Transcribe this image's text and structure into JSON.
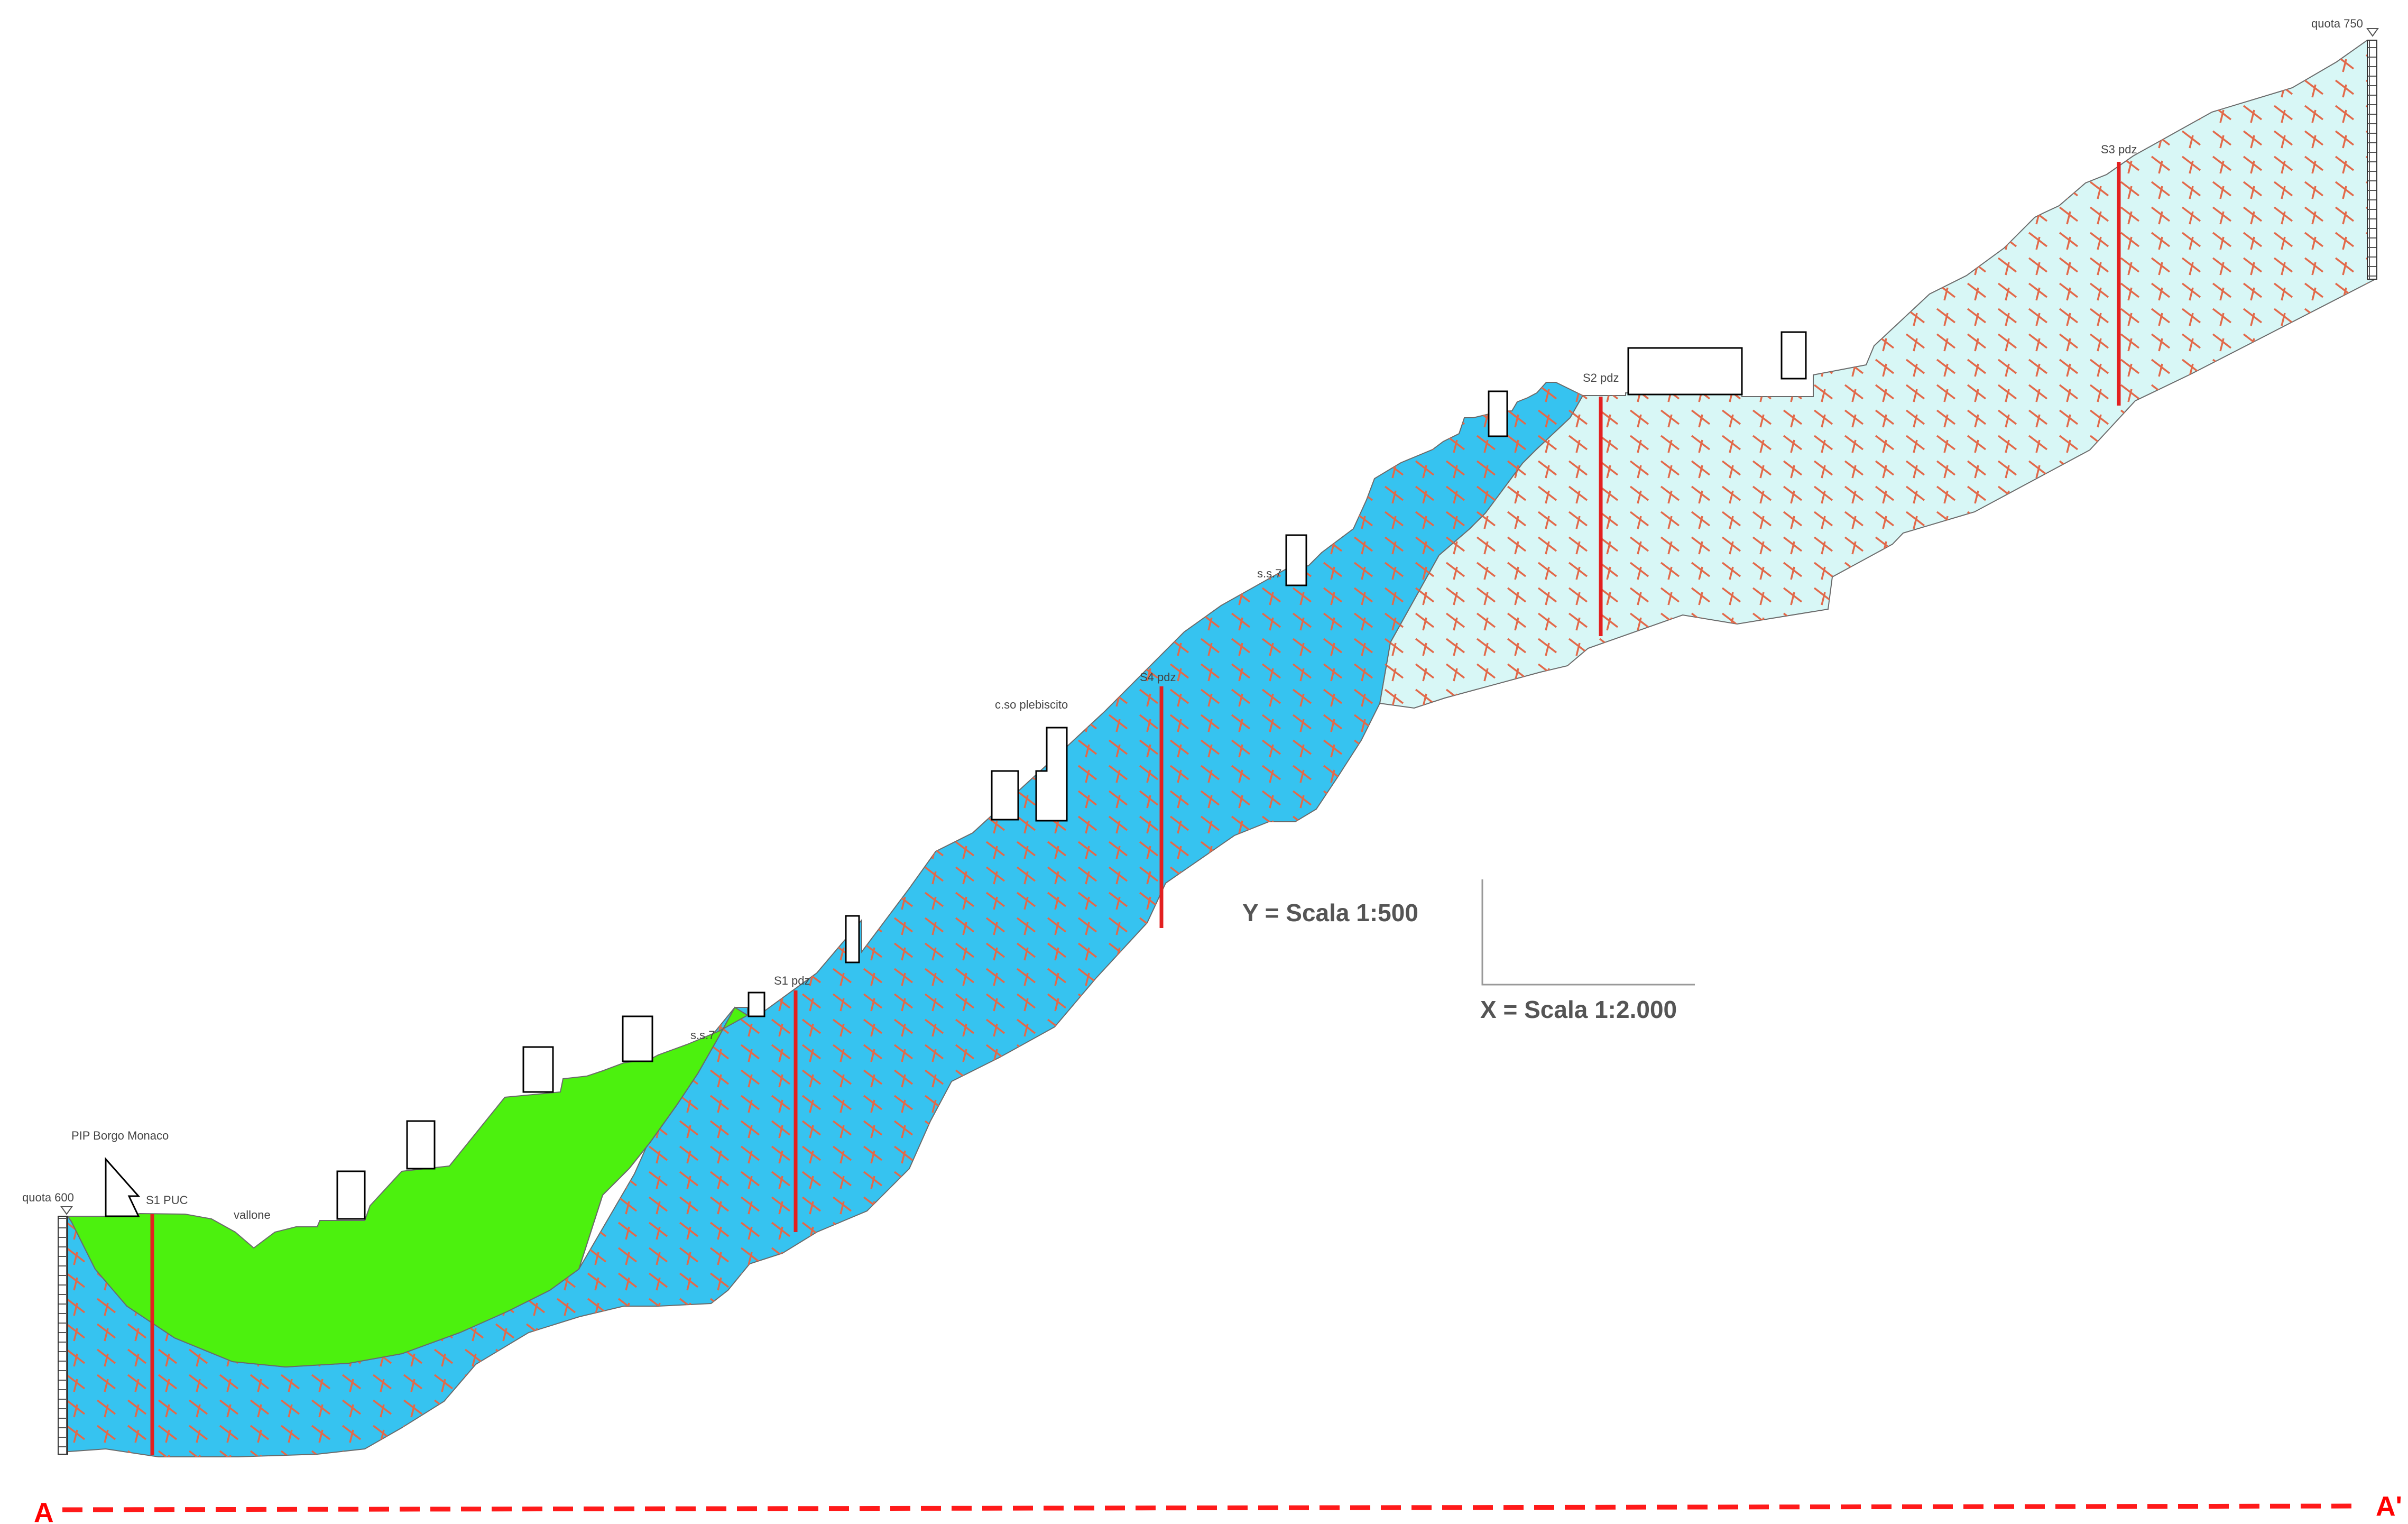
{
  "diagram": {
    "section_start": "A",
    "section_end": "A'",
    "elevation_left": "quota 600",
    "elevation_right": "quota 750",
    "scale_vertical": "Y = Scala 1:500",
    "scale_horizontal": "X = Scala 1:2.000",
    "place_labels": {
      "pip": "PIP Borgo Monaco",
      "vallone": "vallone",
      "ss7_lower": "s.s.7",
      "ss7_upper": "s.s.7",
      "corso": "c.so plebiscito"
    },
    "boreholes": [
      {
        "id": "s1puc",
        "label": "S1 PUC"
      },
      {
        "id": "s1pdz",
        "label": "S1 pdz"
      },
      {
        "id": "s4pdz",
        "label": "S4 pdz"
      },
      {
        "id": "s2pdz",
        "label": "S2 pdz"
      },
      {
        "id": "s3pdz",
        "label": "S3 pdz"
      }
    ],
    "colors": {
      "cover_green": "#4cf10e",
      "rock_blue": "#36c3f0",
      "rock_pale": "#d8f7f6",
      "hatch": "#e2694a",
      "borehole": "#e32020",
      "section_line": "#ff1a1a"
    }
  }
}
